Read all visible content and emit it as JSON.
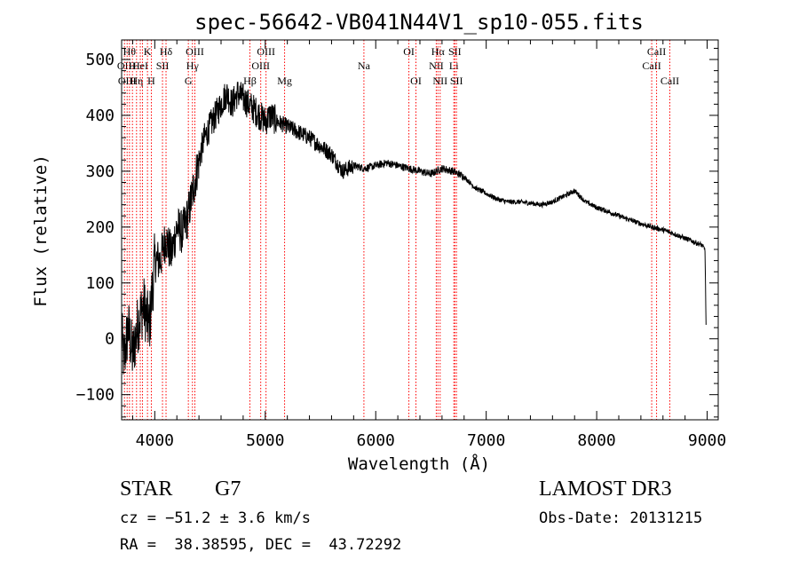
{
  "chart_data": {
    "type": "line",
    "title": "spec-56642-VB041N44V1_sp10-055.fits",
    "xlabel": "Wavelength (Å)",
    "ylabel": "Flux (relative)",
    "xlim": [
      3700,
      9100
    ],
    "ylim": [
      -145,
      535
    ],
    "xticks": [
      4000,
      5000,
      6000,
      7000,
      8000,
      9000
    ],
    "yticks": [
      -100,
      0,
      100,
      200,
      300,
      400,
      500
    ],
    "xtick_labels": [
      "4000",
      "5000",
      "6000",
      "7000",
      "8000",
      "9000"
    ],
    "ytick_labels": [
      "−100",
      "0",
      "100",
      "200",
      "300",
      "400",
      "500"
    ],
    "line_color": "#ff0000",
    "spectrum_color": "#000000",
    "spectrum_anchors": [
      [
        3700,
        10
      ],
      [
        3720,
        -40
      ],
      [
        3760,
        20
      ],
      [
        3800,
        -30
      ],
      [
        3850,
        30
      ],
      [
        3900,
        60
      ],
      [
        3950,
        20
      ],
      [
        4000,
        140
      ],
      [
        4050,
        140
      ],
      [
        4100,
        180
      ],
      [
        4150,
        150
      ],
      [
        4200,
        200
      ],
      [
        4250,
        190
      ],
      [
        4300,
        220
      ],
      [
        4350,
        270
      ],
      [
        4400,
        320
      ],
      [
        4450,
        360
      ],
      [
        4500,
        380
      ],
      [
        4550,
        400
      ],
      [
        4600,
        420
      ],
      [
        4650,
        440
      ],
      [
        4700,
        420
      ],
      [
        4750,
        440
      ],
      [
        4800,
        430
      ],
      [
        4850,
        420
      ],
      [
        4900,
        410
      ],
      [
        4950,
        400
      ],
      [
        5000,
        390
      ],
      [
        5050,
        400
      ],
      [
        5100,
        390
      ],
      [
        5200,
        380
      ],
      [
        5300,
        370
      ],
      [
        5400,
        360
      ],
      [
        5500,
        345
      ],
      [
        5600,
        330
      ],
      [
        5700,
        300
      ],
      [
        5800,
        310
      ],
      [
        5900,
        305
      ],
      [
        6000,
        310
      ],
      [
        6100,
        315
      ],
      [
        6200,
        310
      ],
      [
        6300,
        305
      ],
      [
        6400,
        300
      ],
      [
        6500,
        295
      ],
      [
        6600,
        305
      ],
      [
        6700,
        300
      ],
      [
        6800,
        290
      ],
      [
        6900,
        270
      ],
      [
        7000,
        260
      ],
      [
        7100,
        250
      ],
      [
        7200,
        245
      ],
      [
        7300,
        245
      ],
      [
        7400,
        243
      ],
      [
        7500,
        240
      ],
      [
        7600,
        245
      ],
      [
        7700,
        255
      ],
      [
        7800,
        265
      ],
      [
        7850,
        255
      ],
      [
        7900,
        245
      ],
      [
        8000,
        235
      ],
      [
        8100,
        228
      ],
      [
        8200,
        220
      ],
      [
        8300,
        213
      ],
      [
        8400,
        206
      ],
      [
        8500,
        200
      ],
      [
        8600,
        195
      ],
      [
        8700,
        188
      ],
      [
        8800,
        180
      ],
      [
        8900,
        172
      ],
      [
        8950,
        168
      ],
      [
        8980,
        160
      ],
      [
        8990,
        25
      ]
    ],
    "lines": [
      {
        "wave": 3726,
        "label": "OII",
        "row": 1
      },
      {
        "wave": 3750,
        "label": "OIII",
        "row": 2
      },
      {
        "wave": 3771,
        "label": "Hθ",
        "row": 0
      },
      {
        "wave": 3798,
        "label": "H",
        "row": 1
      },
      {
        "wave": 3835,
        "label": "Hη",
        "row": 2
      },
      {
        "wave": 3869,
        "label": "HeI",
        "row": 1
      },
      {
        "wave": 3889,
        "label": "",
        "row": 0
      },
      {
        "wave": 3934,
        "label": "K",
        "row": 0
      },
      {
        "wave": 3969,
        "label": "H",
        "row": 2
      },
      {
        "wave": 4070,
        "label": "SII",
        "row": 1
      },
      {
        "wave": 4102,
        "label": "Hδ",
        "row": 0
      },
      {
        "wave": 4304,
        "label": "G",
        "row": 2
      },
      {
        "wave": 4341,
        "label": "Hγ",
        "row": 1
      },
      {
        "wave": 4363,
        "label": "OIII",
        "row": 0
      },
      {
        "wave": 4861,
        "label": "Hβ",
        "row": 2
      },
      {
        "wave": 4959,
        "label": "OIII",
        "row": 1
      },
      {
        "wave": 5007,
        "label": "OIII",
        "row": 0
      },
      {
        "wave": 5175,
        "label": "Mg",
        "row": 2
      },
      {
        "wave": 5893,
        "label": "Na",
        "row": 1
      },
      {
        "wave": 6300,
        "label": "OI",
        "row": 0
      },
      {
        "wave": 6364,
        "label": "OI",
        "row": 2
      },
      {
        "wave": 6548,
        "label": "NII",
        "row": 1
      },
      {
        "wave": 6563,
        "label": "Hα",
        "row": 0
      },
      {
        "wave": 6583,
        "label": "NII",
        "row": 2
      },
      {
        "wave": 6707,
        "label": "Li",
        "row": 1
      },
      {
        "wave": 6716,
        "label": "SII",
        "row": 0
      },
      {
        "wave": 6731,
        "label": "SII",
        "row": 2
      },
      {
        "wave": 8498,
        "label": "CaII",
        "row": 1
      },
      {
        "wave": 8542,
        "label": "CaII",
        "row": 0
      },
      {
        "wave": 8662,
        "label": "CaII",
        "row": 2
      }
    ]
  },
  "footer": {
    "object_class": "STAR",
    "subclass": "G7",
    "survey": "LAMOST DR3",
    "redshift": "cz = −51.2 ± 3.6 km/s",
    "obs_date": "Obs-Date: 20131215",
    "coords": "RA =  38.38595, DEC =  43.72292"
  }
}
